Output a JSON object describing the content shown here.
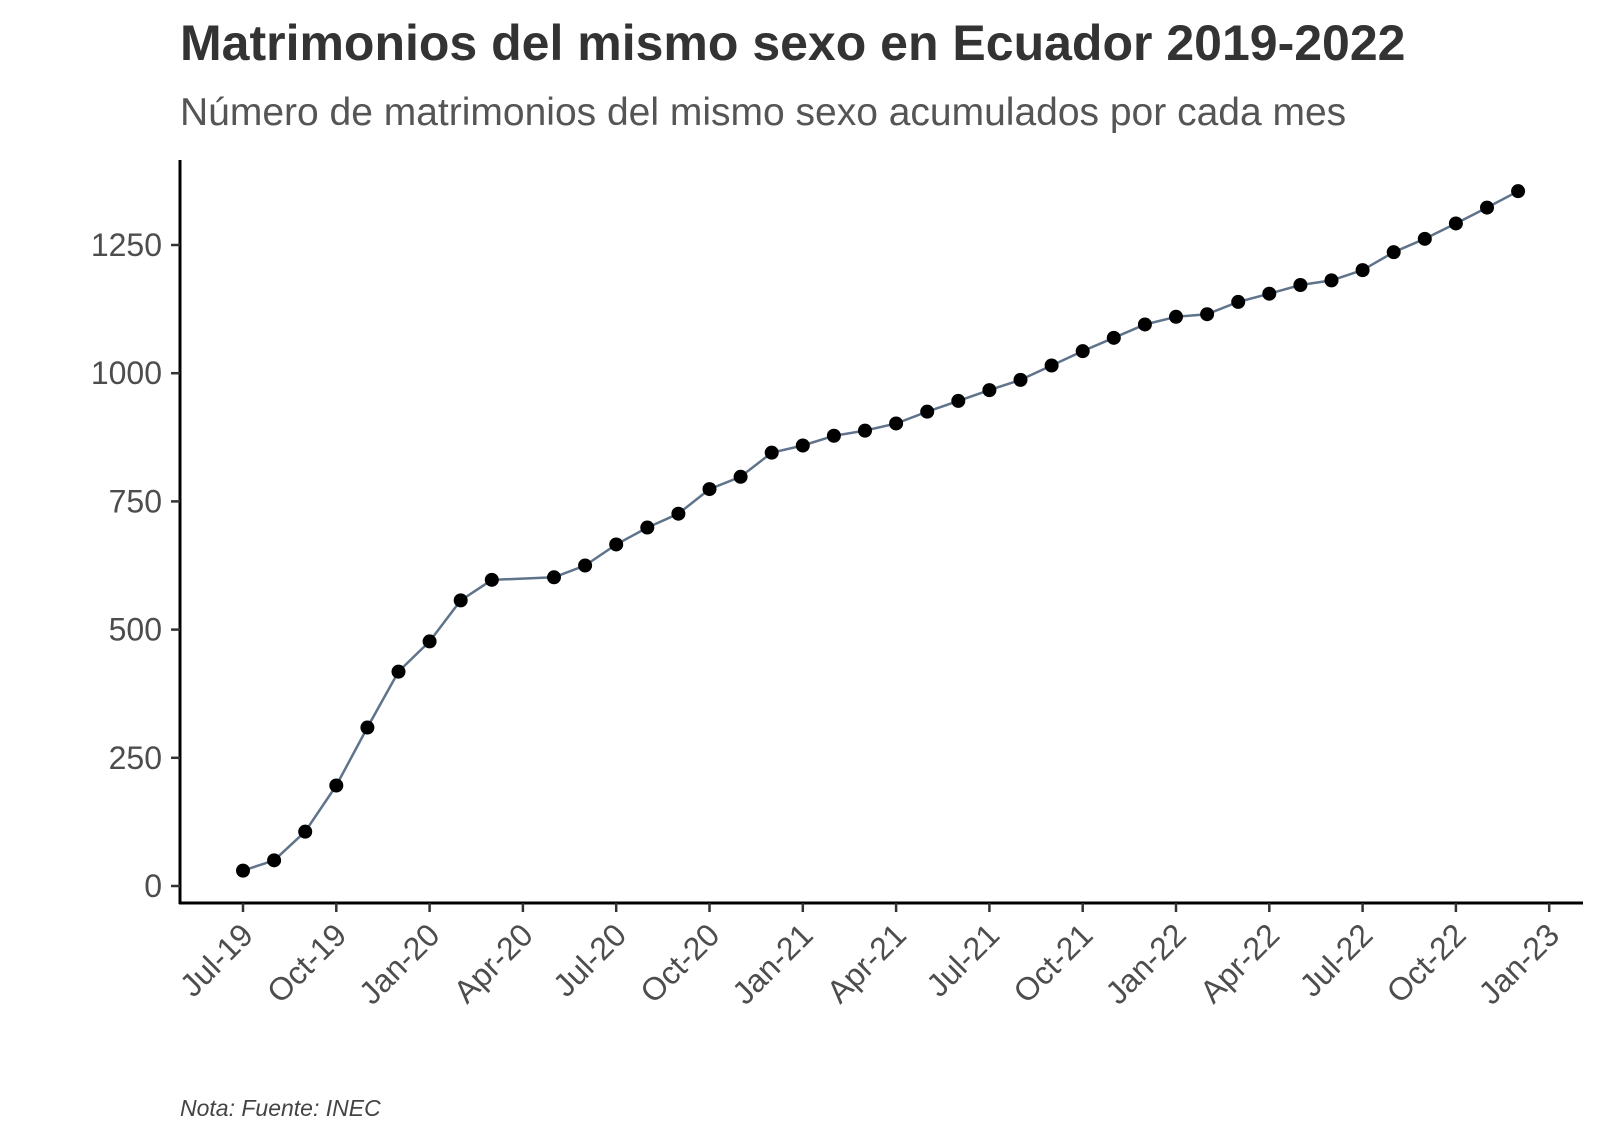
{
  "chart_data": {
    "type": "line",
    "title": "Matrimonios del mismo sexo en Ecuador 2019-2022",
    "subtitle": "Número de matrimonios del mismo sexo acumulados por cada mes",
    "caption": "Nota: Fuente: INEC",
    "xlabel": "",
    "ylabel": "",
    "ylim": [
      -35,
      1420
    ],
    "y_ticks": [
      0,
      250,
      500,
      750,
      1000,
      1250
    ],
    "x_tick_labels": [
      "Jul-19",
      "Oct-19",
      "Jan-20",
      "Apr-20",
      "Jul-20",
      "Oct-20",
      "Jan-21",
      "Apr-21",
      "Jul-21",
      "Oct-21",
      "Jan-22",
      "Apr-22",
      "Jul-22",
      "Oct-22",
      "Jan-23"
    ],
    "grid": false,
    "line_color": "#5f738a",
    "point_color": "#000000",
    "x": [
      "Jul-19",
      "Aug-19",
      "Sep-19",
      "Oct-19",
      "Nov-19",
      "Dec-19",
      "Jan-20",
      "Feb-20",
      "Mar-20",
      "May-20",
      "Jun-20",
      "Jul-20",
      "Aug-20",
      "Sep-20",
      "Oct-20",
      "Nov-20",
      "Dec-20",
      "Jan-21",
      "Feb-21",
      "Mar-21",
      "Apr-21",
      "May-21",
      "Jun-21",
      "Jul-21",
      "Aug-21",
      "Sep-21",
      "Oct-21",
      "Nov-21",
      "Dec-21",
      "Jan-22",
      "Feb-22",
      "Mar-22",
      "Apr-22",
      "May-22",
      "Jun-22",
      "Jul-22",
      "Aug-22",
      "Sep-22",
      "Oct-22",
      "Nov-22",
      "Dec-22"
    ],
    "values": [
      30,
      50,
      106,
      196,
      309,
      418,
      477,
      557,
      597,
      602,
      625,
      666,
      699,
      726,
      774,
      798,
      845,
      859,
      878,
      888,
      902,
      925,
      946,
      967,
      987,
      1015,
      1043,
      1069,
      1095,
      1110,
      1115,
      1139,
      1155,
      1172,
      1181,
      1201,
      1236,
      1262,
      1292,
      1323,
      1355
    ]
  }
}
